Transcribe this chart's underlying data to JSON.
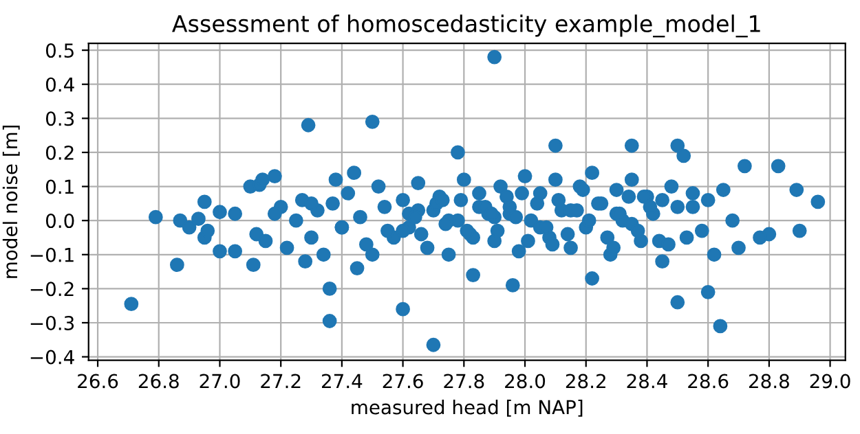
{
  "chart_data": {
    "type": "scatter",
    "title": "Assessment of homoscedasticity example_model_1",
    "xlabel": "measured head [m NAP]",
    "ylabel": "model noise [m]",
    "color": "#1f77b4",
    "marker": "circle",
    "grid": true,
    "x": [
      26.71,
      26.79,
      26.86,
      26.87,
      26.9,
      26.93,
      26.95,
      26.95,
      26.96,
      27.0,
      27.0,
      27.05,
      27.05,
      27.1,
      27.11,
      27.13,
      27.14,
      27.18,
      27.2,
      27.29,
      27.28,
      27.36,
      27.36,
      27.38,
      27.44,
      27.45,
      27.5,
      27.5,
      27.6,
      27.7,
      27.78,
      27.9,
      27.83,
      27.96,
      28.1,
      28.35,
      28.22,
      28.5,
      28.52,
      28.5,
      28.64,
      28.6,
      28.72,
      28.83,
      28.89,
      28.96,
      28.9,
      28.8,
      28.7,
      28.77,
      27.12,
      27.15,
      27.18,
      27.22,
      27.25,
      27.27,
      27.3,
      27.32,
      27.34,
      27.37,
      27.4,
      27.42,
      27.46,
      27.48,
      27.52,
      27.54,
      27.57,
      27.6,
      27.62,
      27.65,
      27.68,
      27.7,
      27.72,
      27.75,
      27.78,
      27.8,
      27.82,
      27.85,
      27.88,
      27.9,
      27.92,
      27.95,
      27.98,
      28.0,
      28.02,
      28.05,
      28.08,
      28.1,
      28.12,
      28.15,
      28.18,
      28.2,
      28.22,
      28.25,
      28.28,
      28.3,
      28.32,
      28.35,
      28.38,
      28.4,
      28.42,
      28.45,
      28.48,
      28.5,
      28.53,
      28.55,
      28.58,
      28.6,
      28.62,
      28.65,
      28.68,
      27.55,
      27.75,
      27.95,
      28.15,
      28.35,
      28.55,
      27.3,
      27.6,
      27.85,
      28.05,
      28.3,
      28.45,
      27.4,
      27.65,
      27.9,
      27.62,
      27.66,
      27.71,
      27.74,
      27.79,
      27.83,
      27.87,
      27.91,
      27.94,
      27.97,
      28.01,
      28.04,
      28.07,
      28.11,
      28.14,
      28.17,
      28.21,
      28.24,
      28.27,
      28.31,
      28.34,
      28.37,
      28.41,
      28.44,
      27.64,
      27.73,
      27.81,
      27.89,
      27.99,
      28.09,
      28.19,
      28.29,
      28.39,
      28.47
    ],
    "values": [
      -0.245,
      0.01,
      -0.13,
      0.0,
      -0.02,
      0.005,
      0.055,
      -0.05,
      -0.03,
      -0.09,
      0.025,
      -0.09,
      0.02,
      0.1,
      -0.13,
      0.105,
      0.12,
      0.13,
      0.04,
      0.28,
      -0.12,
      -0.2,
      -0.295,
      0.12,
      0.14,
      -0.14,
      0.29,
      -0.1,
      -0.26,
      -0.365,
      0.2,
      0.48,
      -0.16,
      -0.19,
      0.22,
      0.22,
      -0.17,
      0.22,
      0.19,
      -0.24,
      -0.31,
      -0.21,
      0.16,
      0.16,
      0.09,
      0.055,
      -0.03,
      -0.04,
      -0.08,
      -0.05,
      -0.04,
      -0.06,
      0.02,
      -0.08,
      0.0,
      0.06,
      -0.05,
      0.03,
      -0.1,
      0.05,
      -0.02,
      0.08,
      0.01,
      -0.07,
      0.1,
      0.04,
      -0.05,
      0.06,
      -0.02,
      0.11,
      -0.08,
      0.03,
      0.07,
      -0.1,
      0.0,
      0.12,
      -0.04,
      0.08,
      0.02,
      -0.06,
      0.1,
      0.04,
      -0.09,
      0.13,
      0.0,
      0.08,
      -0.05,
      0.12,
      0.03,
      -0.08,
      0.1,
      -0.02,
      0.14,
      0.05,
      -0.1,
      0.09,
      0.0,
      0.12,
      -0.06,
      0.07,
      0.02,
      -0.12,
      0.1,
      0.04,
      -0.05,
      0.08,
      -0.03,
      0.06,
      -0.1,
      0.09,
      0.0,
      -0.03,
      0.0,
      0.02,
      0.03,
      -0.01,
      0.04,
      0.05,
      -0.03,
      0.04,
      -0.02,
      0.02,
      0.06,
      -0.02,
      0.03,
      0.01,
      0.02,
      -0.04,
      0.05,
      -0.01,
      0.06,
      -0.05,
      0.04,
      -0.03,
      0.07,
      0.01,
      -0.06,
      0.05,
      -0.02,
      0.06,
      -0.04,
      0.03,
      0.0,
      0.05,
      -0.05,
      0.02,
      0.07,
      -0.03,
      0.04,
      -0.06,
      0.01,
      0.06,
      -0.03,
      0.02,
      0.08,
      -0.07,
      0.09,
      -0.08,
      0.07,
      -0.07
    ],
    "xlim": [
      26.57,
      29.05
    ],
    "ylim": [
      -0.41,
      0.52
    ],
    "xticks": [
      26.6,
      26.8,
      {
        "value": 27,
        "label": "27.0"
      },
      27.2,
      27.4,
      27.6,
      27.8,
      {
        "value": 28,
        "label": "28.0"
      },
      28.2,
      28.4,
      28.6,
      28.8,
      {
        "value": 29,
        "label": "29.0"
      }
    ],
    "yticks": [
      {
        "value": -0.4,
        "label": "−0.4"
      },
      {
        "value": -0.3,
        "label": "−0.3"
      },
      {
        "value": -0.2,
        "label": "−0.2"
      },
      {
        "value": -0.1,
        "label": "−0.1"
      },
      {
        "value": 0,
        "label": "0.0"
      },
      0.1,
      0.2,
      0.3,
      0.4,
      0.5
    ]
  }
}
